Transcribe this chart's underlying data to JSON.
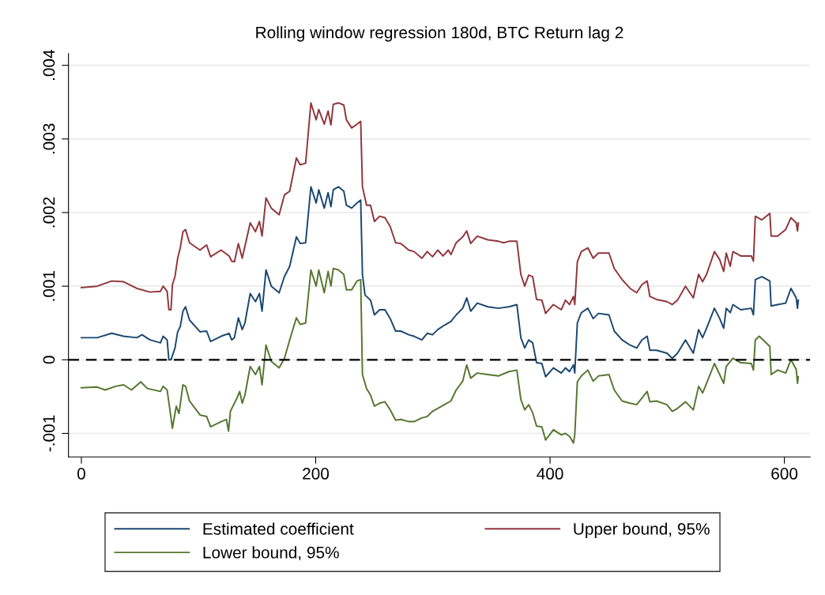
{
  "chart_data": {
    "type": "line",
    "title": "Rolling window regression 180d, BTC Return lag 2",
    "xlim": [
      -11,
      622
    ],
    "xticks": [
      0,
      200,
      400,
      600
    ],
    "ylim": [
      -0.00132,
      0.00416
    ],
    "yticks": [
      {
        "value": -0.001,
        "label": "-.001"
      },
      {
        "value": 0,
        "label": "0"
      },
      {
        "value": 0.001,
        "label": ".001"
      },
      {
        "value": 0.002,
        "label": ".002"
      },
      {
        "value": 0.003,
        "label": ".003"
      },
      {
        "value": 0.004,
        "label": ".004"
      }
    ],
    "grid": "y",
    "legend": "bottom",
    "line_style": "solid",
    "marker": "none",
    "ref_lines": [
      {
        "axis": "y",
        "value": 0,
        "color": "#000000",
        "line_style": "dashed"
      }
    ],
    "series": [
      {
        "name": "Estimated coefficient",
        "color": "#1a476f",
        "x": [
          0,
          13.5,
          25.9,
          36,
          47.3,
          51.8,
          58.5,
          67.5,
          69.8,
          73.2,
          74.7,
          76.5,
          79.9,
          82.2,
          84.4,
          86.7,
          88.9,
          92.3,
          101.3,
          106.9,
          110.3,
          119.3,
          126.1,
          128.3,
          130.6,
          134,
          137.3,
          139.6,
          144.1,
          148.6,
          152,
          154.2,
          157.6,
          162.1,
          168.8,
          173.3,
          177.8,
          183.5,
          186.8,
          191.4,
          195.9,
          200.4,
          202.6,
          207.3,
          210.6,
          213,
          215,
          219.5,
          224,
          226.2,
          230.7,
          235.2,
          238.4,
          239.9,
          242.1,
          246.8,
          250.1,
          254.6,
          259.1,
          263.6,
          268.2,
          272.6,
          279.4,
          283.9,
          290.6,
          295.2,
          299.7,
          304.2,
          309.8,
          315.4,
          319.9,
          325.5,
          328.9,
          332.3,
          337.9,
          346.9,
          355.9,
          364.9,
          371.7,
          375.1,
          378.4,
          381.8,
          385.2,
          388.5,
          393,
          396.2,
          402.9,
          409.6,
          413.2,
          416.6,
          420,
          421.1,
          423.3,
          426.7,
          432.3,
          436.8,
          441.3,
          450.3,
          454.8,
          461.5,
          468.3,
          473.9,
          478.4,
          482.9,
          485.2,
          490.8,
          499.8,
          504.3,
          508.8,
          515.6,
          522.3,
          526.8,
          530.2,
          533.6,
          540.3,
          544.8,
          548.2,
          550.4,
          553.8,
          556.1,
          562.8,
          571.8,
          573.6,
          575.2,
          580.8,
          587.6,
          588.7,
          594.3,
          601.1,
          605.6,
          610.1,
          611.2,
          611.9
        ],
        "values": [
          0.0003,
          0.0003,
          0.00036,
          0.00032,
          0.0003,
          0.00034,
          0.00027,
          0.00023,
          0.00032,
          0.00027,
          0,
          0,
          0.00016,
          0.00038,
          0.00045,
          0.00066,
          0.00072,
          0.00054,
          0.00038,
          0.00039,
          0.00025,
          0.00032,
          0.00036,
          0.00027,
          0.0003,
          0.00057,
          0.00041,
          0.0005,
          0.0009,
          0.00079,
          0.0009,
          0.00066,
          0.00122,
          0.001,
          0.00091,
          0.00113,
          0.00127,
          0.00167,
          0.00158,
          0.00159,
          0.00235,
          0.00213,
          0.00231,
          0.00206,
          0.00227,
          0.00208,
          0.00231,
          0.00235,
          0.00229,
          0.0021,
          0.00206,
          0.00213,
          0.00217,
          0.00116,
          0.00088,
          0.00081,
          0.00061,
          0.00068,
          0.00068,
          0.00056,
          0.00039,
          0.00039,
          0.00034,
          0.00032,
          0.00027,
          0.00036,
          0.00034,
          0.00041,
          0.00047,
          0.00052,
          0.00061,
          0.0007,
          0.00084,
          0.00066,
          0.00077,
          0.00072,
          0.0007,
          0.00072,
          0.00075,
          0.0003,
          0.00016,
          0.00027,
          0.00023,
          -4e-05,
          -5e-05,
          -0.00023,
          -0.00011,
          -0.00018,
          -0.00011,
          -0.00016,
          -7e-05,
          -0.00018,
          0.0005,
          0.00064,
          0.0007,
          0.00056,
          0.00063,
          0.00061,
          0.00039,
          0.00027,
          0.0002,
          0.00016,
          0.00027,
          0.00032,
          0.00013,
          0.00013,
          9e-05,
          2e-05,
          9e-05,
          0.00027,
          9e-05,
          0.00041,
          0.0003,
          0.00043,
          0.0007,
          0.00056,
          0.00043,
          0.0007,
          0.00064,
          0.00075,
          0.00068,
          0.0007,
          0.00061,
          0.00109,
          0.00113,
          0.00107,
          0.00073,
          0.00075,
          0.00077,
          0.00097,
          0.00084,
          0.0007,
          0.00081
        ]
      },
      {
        "name": "Upper bound, 95%",
        "color": "#90353b",
        "x": [
          0,
          13.5,
          25.9,
          36,
          47.3,
          58.5,
          67.5,
          69.8,
          73.2,
          74.7,
          76.5,
          77.7,
          79.9,
          82.2,
          84.4,
          86.7,
          88.9,
          92.3,
          101.3,
          106.9,
          110.3,
          119.3,
          126.1,
          128.3,
          130.6,
          134,
          137.3,
          144.1,
          148.6,
          152,
          154.2,
          157.6,
          162.1,
          168.8,
          173.3,
          177.8,
          183.5,
          186.8,
          191.4,
          195.9,
          200.4,
          202.6,
          207.3,
          210.6,
          213,
          215,
          219.5,
          224,
          226.2,
          230.7,
          235.2,
          238.4,
          239.9,
          243.4,
          246.8,
          250.1,
          254.6,
          259.1,
          263.6,
          268.2,
          272.6,
          279.4,
          283.9,
          290.6,
          295.2,
          299.7,
          304.2,
          308.7,
          313.2,
          315.4,
          319.9,
          325.5,
          328.9,
          332.3,
          337.9,
          346.9,
          355.9,
          360.4,
          364.9,
          371.7,
          375.1,
          378.4,
          381.8,
          385.2,
          388.5,
          393,
          396.2,
          402.9,
          409.6,
          413.2,
          416.6,
          420,
          421.1,
          423.3,
          426.7,
          432.3,
          436.8,
          441.3,
          450.3,
          454.8,
          461.5,
          468.3,
          473.9,
          478.4,
          482.9,
          485.2,
          490.8,
          499.8,
          504.3,
          508.8,
          515.6,
          522.3,
          526.8,
          530.2,
          533.6,
          540.3,
          544.8,
          548.2,
          550.4,
          553.8,
          556.1,
          562.8,
          571.8,
          573.6,
          575.2,
          580.8,
          587.6,
          588.7,
          594.3,
          601.1,
          605.6,
          610.1,
          611.2,
          611.9
        ],
        "values": [
          0.00098,
          0.001,
          0.00107,
          0.00106,
          0.00097,
          0.00092,
          0.00093,
          0.001,
          0.00093,
          0.00068,
          0.00068,
          0.00102,
          0.00113,
          0.00138,
          0.00152,
          0.00174,
          0.00177,
          0.00159,
          0.00149,
          0.00156,
          0.0014,
          0.00149,
          0.00141,
          0.00134,
          0.00133,
          0.00158,
          0.00138,
          0.00186,
          0.00174,
          0.00188,
          0.00168,
          0.0022,
          0.00206,
          0.00197,
          0.00224,
          0.00229,
          0.00274,
          0.00265,
          0.00267,
          0.00349,
          0.00326,
          0.0034,
          0.0032,
          0.00338,
          0.00319,
          0.00347,
          0.00349,
          0.00346,
          0.00326,
          0.00315,
          0.0032,
          0.00324,
          0.00235,
          0.0021,
          0.0021,
          0.00188,
          0.00195,
          0.00193,
          0.00181,
          0.00159,
          0.00158,
          0.00149,
          0.00147,
          0.00138,
          0.00147,
          0.0014,
          0.00149,
          0.00141,
          0.00149,
          0.00143,
          0.00159,
          0.00167,
          0.00175,
          0.00158,
          0.00168,
          0.00163,
          0.00161,
          0.00159,
          0.00161,
          0.00161,
          0.00116,
          0.001,
          0.00115,
          0.00113,
          0.00082,
          0.00081,
          0.00063,
          0.00075,
          0.00068,
          0.00081,
          0.00075,
          0.00086,
          0.00075,
          0.00133,
          0.00147,
          0.00152,
          0.00138,
          0.00145,
          0.00145,
          0.00124,
          0.00109,
          0.00097,
          0.00091,
          0.00102,
          0.00107,
          0.00086,
          0.00082,
          0.00079,
          0.00075,
          0.00081,
          0.001,
          0.00084,
          0.00116,
          0.00106,
          0.00116,
          0.00147,
          0.00136,
          0.0012,
          0.00145,
          0.00127,
          0.00147,
          0.00141,
          0.00141,
          0.00134,
          0.00195,
          0.0019,
          0.00199,
          0.00168,
          0.00168,
          0.00177,
          0.00193,
          0.00186,
          0.00175,
          0.00186
        ]
      },
      {
        "name": "Lower bound, 95%",
        "color": "#55752f",
        "x": [
          0,
          13.5,
          20.3,
          29.3,
          36,
          42.8,
          50.7,
          56.3,
          67.5,
          69.8,
          73.2,
          75.4,
          77.7,
          81,
          83.3,
          86.7,
          88.9,
          92.3,
          101.3,
          106.9,
          110.3,
          119.3,
          123.8,
          125.6,
          127.2,
          132.8,
          135.1,
          137.3,
          139.6,
          144.1,
          148.6,
          152,
          154.2,
          157.6,
          162.1,
          168.8,
          173.3,
          177.8,
          183.5,
          186.8,
          191.4,
          195.9,
          200.4,
          202.6,
          207.3,
          210.6,
          213,
          215,
          219.5,
          224,
          226.2,
          230.7,
          235.2,
          238.4,
          239.9,
          243.4,
          246.8,
          250.1,
          254.6,
          259.1,
          263.6,
          268.2,
          272.6,
          279.4,
          283.9,
          290.6,
          295.2,
          299.7,
          304.2,
          309.8,
          315.4,
          319.9,
          325.5,
          328.9,
          332.3,
          337.9,
          346.9,
          355.9,
          364.9,
          371.7,
          375.1,
          378.4,
          381.8,
          385.2,
          388.5,
          393,
          396.2,
          402.9,
          409.6,
          413.2,
          416.6,
          420,
          421.1,
          423.3,
          426.7,
          432.3,
          436.8,
          441.3,
          450.3,
          454.8,
          461.5,
          468.3,
          473.9,
          478.4,
          482.9,
          485.2,
          490.8,
          499.8,
          504.3,
          508.8,
          515.6,
          522.3,
          526.8,
          530.2,
          533.6,
          540.3,
          544.8,
          548.2,
          550.4,
          556.1,
          562.8,
          571.8,
          573.6,
          575.2,
          578.6,
          587.6,
          588.7,
          594.3,
          601.1,
          605.6,
          610.1,
          611.2,
          611.9
        ],
        "values": [
          -0.00038,
          -0.00037,
          -0.00041,
          -0.00036,
          -0.00034,
          -0.00041,
          -0.0003,
          -0.00039,
          -0.00043,
          -0.00036,
          -0.00041,
          -0.00066,
          -0.00093,
          -0.00063,
          -0.00073,
          -0.00034,
          -0.00036,
          -0.00056,
          -0.00075,
          -0.00077,
          -0.00091,
          -0.00084,
          -0.00081,
          -0.00097,
          -0.0007,
          -0.00052,
          -0.00043,
          -0.00059,
          -0.00048,
          -9e-05,
          -0.0002,
          -9e-05,
          -0.00034,
          0.0002,
          -2e-05,
          -0.00011,
          2e-05,
          0.00027,
          0.00057,
          0.00048,
          0.0005,
          0.00122,
          0.001,
          0.00122,
          0.00091,
          0.0012,
          0.001,
          0.00124,
          0.00122,
          0.00116,
          0.00095,
          0.00095,
          0.00107,
          0.00109,
          -0.0002,
          -0.00039,
          -0.00048,
          -0.00063,
          -0.00059,
          -0.00057,
          -0.00068,
          -0.00082,
          -0.00081,
          -0.00084,
          -0.00084,
          -0.00079,
          -0.00077,
          -0.0007,
          -0.00066,
          -0.00061,
          -0.00056,
          -0.00041,
          -0.00029,
          -7e-05,
          -0.00025,
          -0.00018,
          -0.0002,
          -0.00022,
          -0.00016,
          -0.00014,
          -0.00054,
          -0.00068,
          -0.00061,
          -0.00072,
          -0.0009,
          -0.00091,
          -0.00109,
          -0.00095,
          -0.00102,
          -0.001,
          -0.00104,
          -0.00113,
          -0.00102,
          -0.0003,
          -0.00022,
          -0.00014,
          -0.00029,
          -0.00022,
          -0.0002,
          -0.00041,
          -0.00056,
          -0.00059,
          -0.00061,
          -0.00052,
          -0.00043,
          -0.00057,
          -0.00056,
          -0.00061,
          -0.0007,
          -0.00066,
          -0.00057,
          -0.00068,
          -0.00036,
          -0.00045,
          -0.00032,
          -5e-05,
          -0.0002,
          -0.00032,
          -9e-05,
          2e-05,
          -4e-05,
          -5e-05,
          -0.00014,
          0.00027,
          0.00032,
          0.00018,
          -0.0002,
          -0.00014,
          -0.00018,
          0,
          -0.00013,
          -0.00032,
          -0.00023
        ]
      }
    ]
  }
}
